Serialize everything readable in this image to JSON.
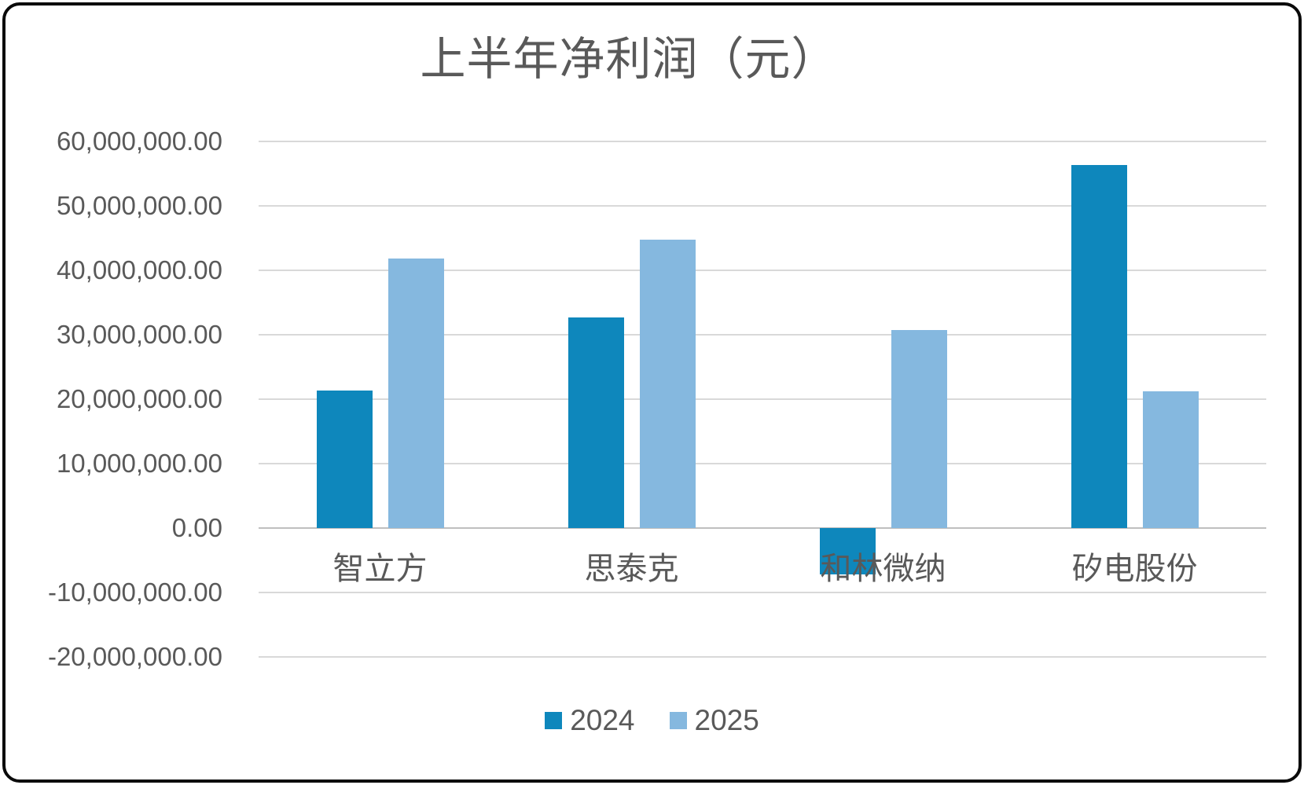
{
  "chart_data": {
    "type": "bar",
    "title": "上半年净利润（元）",
    "categories": [
      "智立方",
      "思泰克",
      "和林微纳",
      "矽电股份"
    ],
    "series": [
      {
        "name": "2024",
        "color": "#0E87BC",
        "values": [
          21400000,
          32700000,
          -7200000,
          56300000
        ]
      },
      {
        "name": "2025",
        "color": "#85B8DF",
        "values": [
          41800000,
          44700000,
          30700000,
          21200000
        ]
      }
    ],
    "ylim": [
      -20000000,
      60000000
    ],
    "ytick_step": 10000000,
    "ytick_labels": [
      "60,000,000.00",
      "50,000,000.00",
      "40,000,000.00",
      "30,000,000.00",
      "20,000,000.00",
      "10,000,000.00",
      "0.00",
      "-10,000,000.00",
      "-20,000,000.00"
    ],
    "grid": true,
    "legend_position": "bottom",
    "xlabel": "",
    "ylabel": ""
  },
  "colors": {
    "grid": "#d9d9d9",
    "axis": "#bfbfbf",
    "text": "#595959",
    "frame": "#0a0a0a",
    "background": "#ffffff"
  }
}
